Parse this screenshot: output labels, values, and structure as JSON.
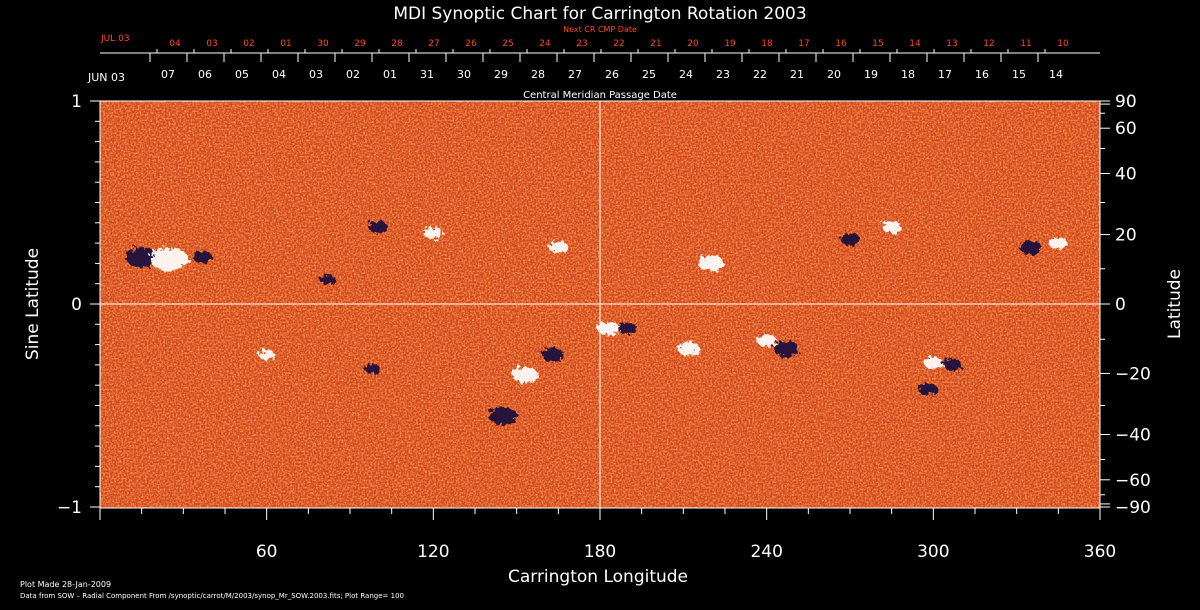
{
  "chart_data": {
    "type": "heatmap",
    "title": "MDI Synoptic Chart for Carrington Rotation 2003",
    "xlabel": "Carrington Longitude",
    "ylabel_left": "Sine Latitude",
    "ylabel_right": "Latitude",
    "xlim": [
      0,
      360
    ],
    "ylim": [
      -1,
      1
    ],
    "x_ticks": [
      60,
      120,
      180,
      240,
      300,
      360
    ],
    "left_ticks": [
      {
        "v": 1,
        "label": "1"
      },
      {
        "v": 0,
        "label": "0"
      },
      {
        "v": -1,
        "label": "−1"
      }
    ],
    "right_ticks": [
      90,
      60,
      40,
      20,
      0,
      -20,
      -40,
      -60,
      -90
    ],
    "cmp_label": "Central Meridian Passage Date",
    "cmp_start": "JUN 03",
    "cmp_dates": [
      "07",
      "06",
      "05",
      "04",
      "03",
      "02",
      "01",
      "31",
      "30",
      "29",
      "28",
      "27",
      "26",
      "25",
      "24",
      "23",
      "22",
      "21",
      "20",
      "19",
      "18",
      "17",
      "16",
      "15",
      "14"
    ],
    "next_cr_label": "Next CR CMP Date",
    "next_cr_start": "JUL 03",
    "next_cr_dates": [
      "04",
      "03",
      "02",
      "01",
      "30",
      "29",
      "28",
      "27",
      "26",
      "25",
      "24",
      "23",
      "22",
      "21",
      "20",
      "19",
      "18",
      "17",
      "16",
      "15",
      "14",
      "13",
      "12",
      "11",
      "10"
    ],
    "active_regions": [
      {
        "lon": 15,
        "sinlat": 0.23,
        "polarity": "negative",
        "size": 10
      },
      {
        "lon": 25,
        "sinlat": 0.22,
        "polarity": "positive",
        "size": 12
      },
      {
        "lon": 37,
        "sinlat": 0.23,
        "polarity": "negative",
        "size": 6
      },
      {
        "lon": 82,
        "sinlat": 0.12,
        "polarity": "negative",
        "size": 5
      },
      {
        "lon": 100,
        "sinlat": 0.38,
        "polarity": "negative",
        "size": 6
      },
      {
        "lon": 120,
        "sinlat": 0.35,
        "polarity": "positive",
        "size": 6
      },
      {
        "lon": 165,
        "sinlat": 0.28,
        "polarity": "positive",
        "size": 6
      },
      {
        "lon": 60,
        "sinlat": -0.25,
        "polarity": "positive",
        "size": 5
      },
      {
        "lon": 98,
        "sinlat": -0.32,
        "polarity": "negative",
        "size": 5
      },
      {
        "lon": 145,
        "sinlat": -0.55,
        "polarity": "negative",
        "size": 9
      },
      {
        "lon": 153,
        "sinlat": -0.35,
        "polarity": "positive",
        "size": 8
      },
      {
        "lon": 163,
        "sinlat": -0.25,
        "polarity": "negative",
        "size": 7
      },
      {
        "lon": 183,
        "sinlat": -0.12,
        "polarity": "positive",
        "size": 7
      },
      {
        "lon": 190,
        "sinlat": -0.12,
        "polarity": "negative",
        "size": 6
      },
      {
        "lon": 220,
        "sinlat": 0.2,
        "polarity": "positive",
        "size": 8
      },
      {
        "lon": 212,
        "sinlat": -0.22,
        "polarity": "positive",
        "size": 7
      },
      {
        "lon": 247,
        "sinlat": -0.22,
        "polarity": "negative",
        "size": 8
      },
      {
        "lon": 240,
        "sinlat": -0.18,
        "polarity": "positive",
        "size": 6
      },
      {
        "lon": 270,
        "sinlat": 0.32,
        "polarity": "negative",
        "size": 6
      },
      {
        "lon": 285,
        "sinlat": 0.38,
        "polarity": "positive",
        "size": 6
      },
      {
        "lon": 300,
        "sinlat": -0.29,
        "polarity": "positive",
        "size": 6
      },
      {
        "lon": 298,
        "sinlat": -0.42,
        "polarity": "negative",
        "size": 6
      },
      {
        "lon": 307,
        "sinlat": -0.3,
        "polarity": "negative",
        "size": 6
      },
      {
        "lon": 335,
        "sinlat": 0.28,
        "polarity": "negative",
        "size": 7
      },
      {
        "lon": 345,
        "sinlat": 0.3,
        "polarity": "positive",
        "size": 6
      }
    ]
  },
  "footer": {
    "plot_made": "Plot Made 28-Jan-2009",
    "data_from": "Data from SOW – Radial Component From /synoptic/carrot/M/2003/synop_Mr_SOW.2003.fits; Plot Range= 100"
  },
  "colors": {
    "background": "#000000",
    "map_base": "#d8421a",
    "positive": "#ffffff",
    "negative": "#140a3c",
    "next_cr": "#ff4a1a",
    "axis": "#ffffff"
  }
}
